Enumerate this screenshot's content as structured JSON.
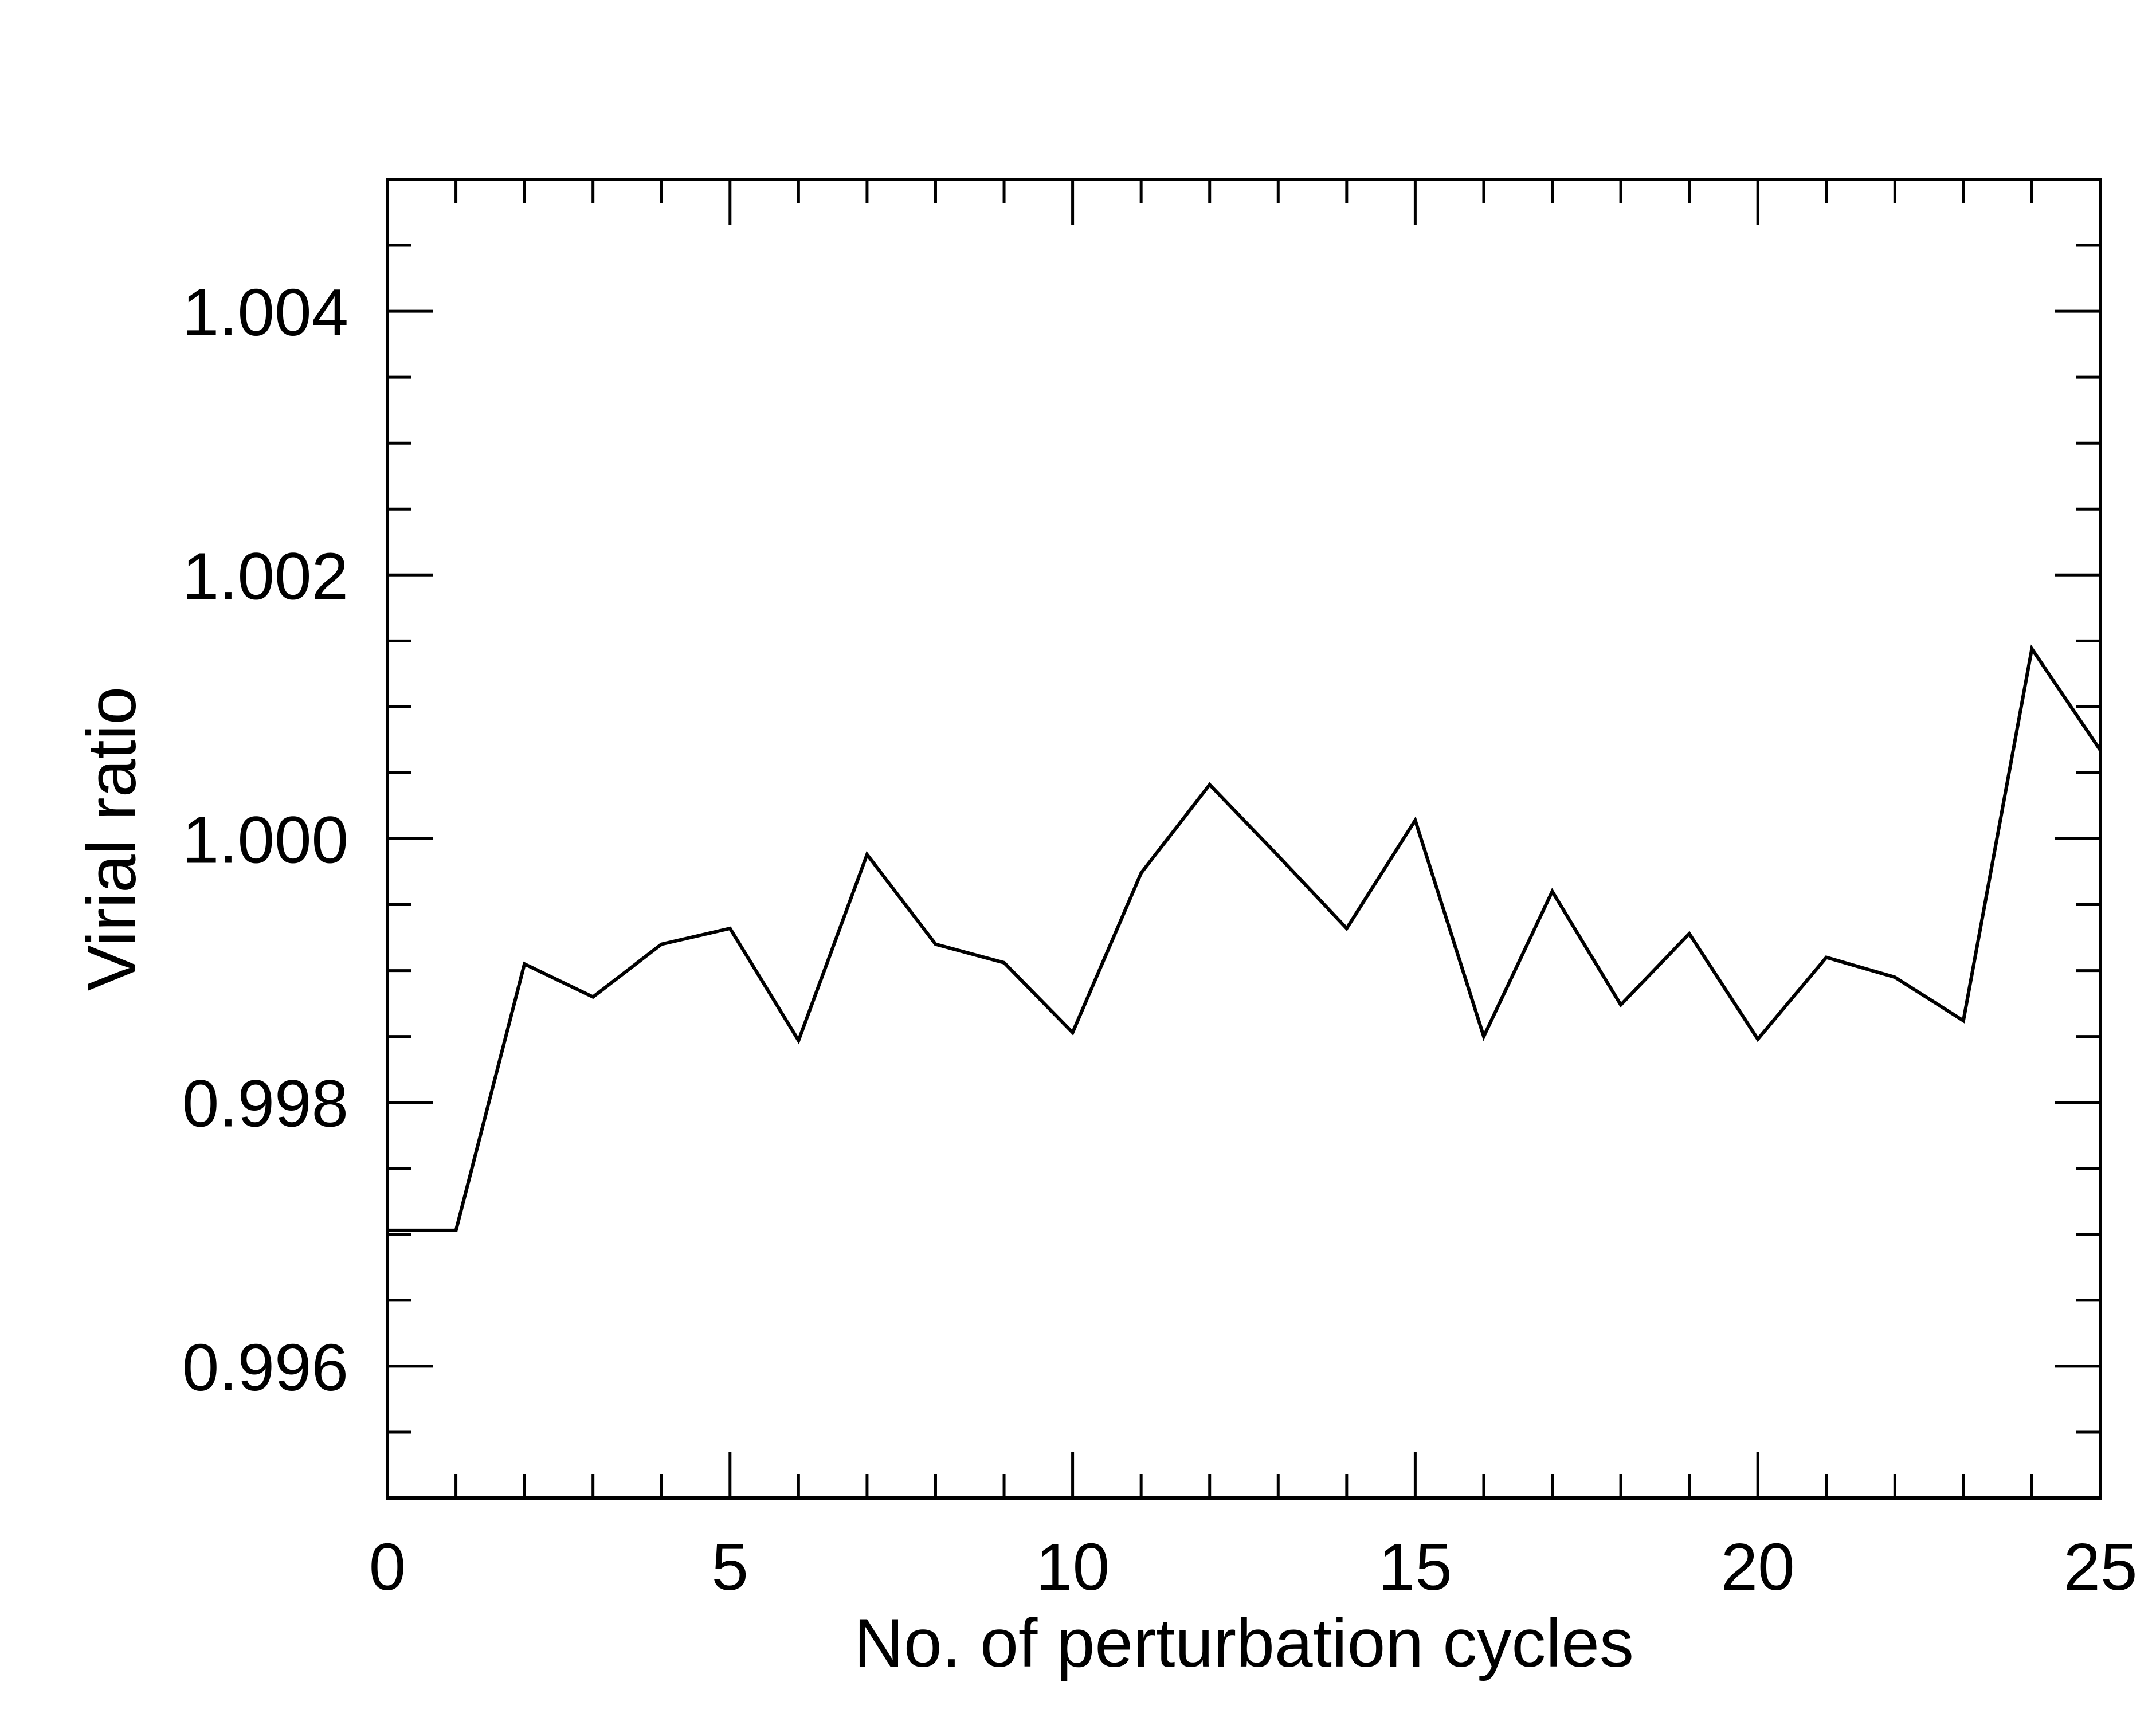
{
  "chart_data": {
    "type": "line",
    "title": "",
    "xlabel": "No. of perturbation cycles",
    "ylabel": "Virial ratio",
    "xlim": [
      0,
      25
    ],
    "ylim": [
      0.995,
      1.005
    ],
    "x_major_ticks": [
      0,
      5,
      10,
      15,
      20,
      25
    ],
    "x_tick_labels": [
      "0",
      "5",
      "10",
      "15",
      "20",
      "25"
    ],
    "x_minor_step": 1,
    "y_major_ticks": [
      0.996,
      0.998,
      1.0,
      1.002,
      1.004
    ],
    "y_tick_labels": [
      "0.996",
      "0.998",
      "1.000",
      "1.002",
      "1.004"
    ],
    "y_minor_step": 0.0005,
    "grid": false,
    "line_color": "#000000",
    "series": [
      {
        "x": [
          0,
          1,
          2,
          3,
          4,
          5,
          6,
          7,
          8,
          9,
          10,
          11,
          12,
          13,
          14,
          15,
          16,
          17,
          18,
          19,
          20,
          21,
          22,
          23,
          24,
          25
        ],
        "y": [
          0.99703,
          0.99703,
          0.99905,
          0.9988,
          0.9992,
          0.99932,
          0.99847,
          0.99988,
          0.9992,
          0.99906,
          0.99853,
          0.99974,
          1.00041,
          0.99987,
          0.99932,
          1.00014,
          0.9985,
          0.9996,
          0.99874,
          0.99928,
          0.99848,
          0.9991,
          0.99895,
          0.99862,
          1.00144,
          1.00067
        ]
      }
    ]
  }
}
